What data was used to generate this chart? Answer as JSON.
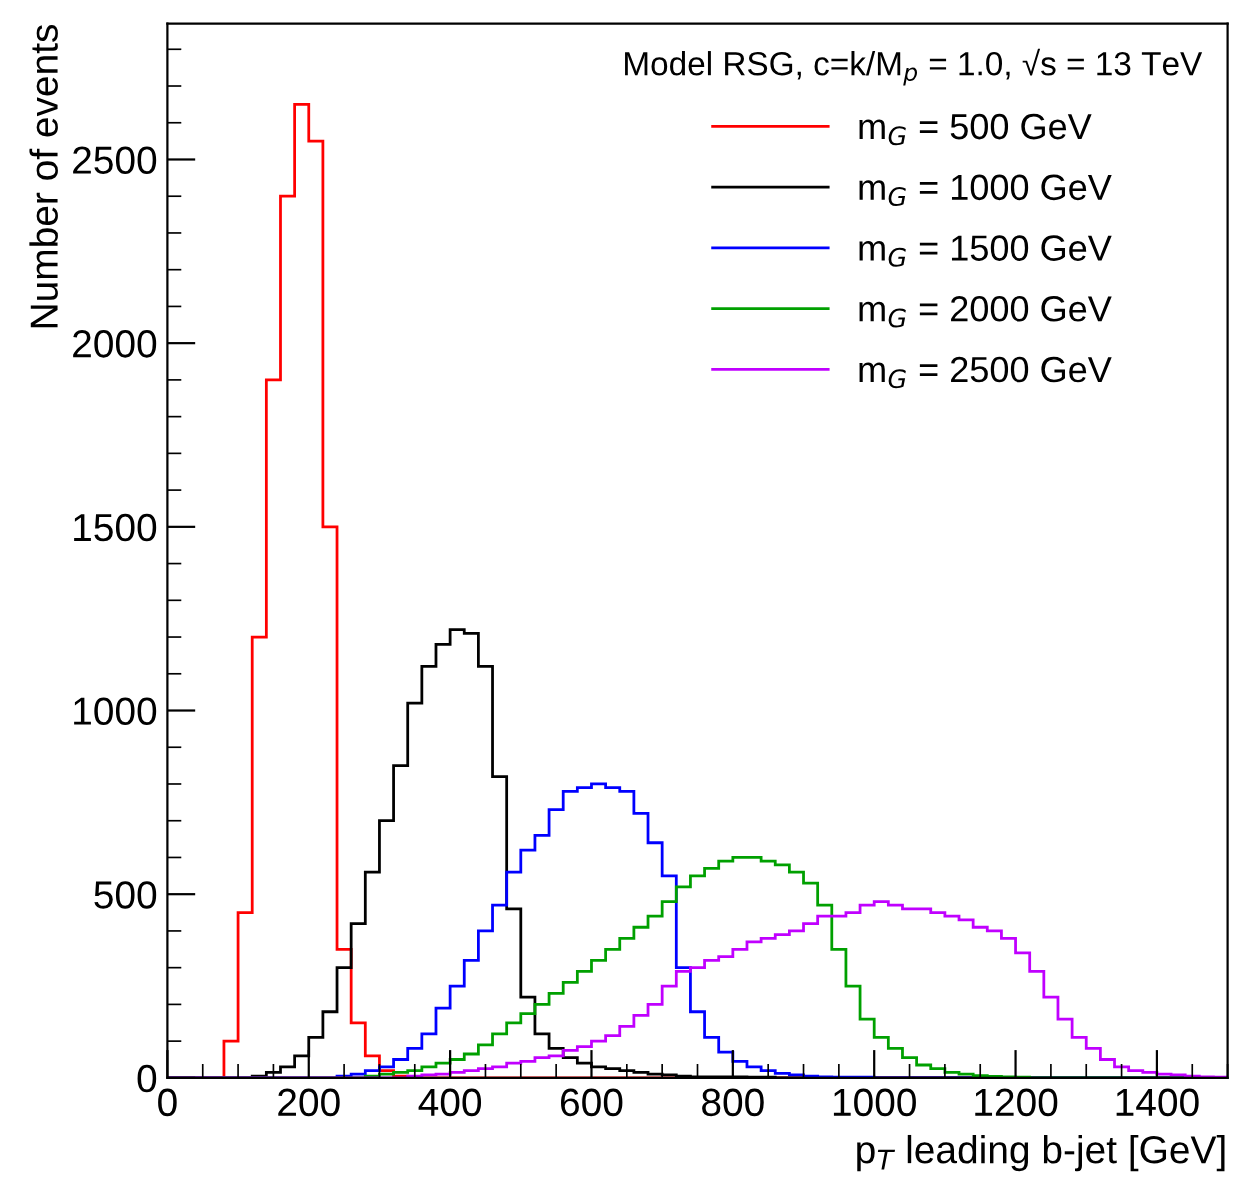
{
  "chart_data": {
    "type": "histogram",
    "xlabel": "p$_{T}$ leading b-jet [GeV]",
    "ylabel": "Number of events",
    "legend_title": "Model RSG, c=k/M$_{p}$ = 1.0, √s = 13 TeV",
    "bins": [
      0,
      20,
      40,
      60,
      80,
      100,
      120,
      140,
      160,
      180,
      200,
      220,
      240,
      260,
      280,
      300,
      320,
      340,
      360,
      380,
      400,
      420,
      440,
      460,
      480,
      500,
      520,
      540,
      560,
      580,
      600,
      620,
      640,
      660,
      680,
      700,
      720,
      740,
      760,
      780,
      800,
      820,
      840,
      860,
      880,
      900,
      920,
      940,
      960,
      980,
      1000,
      1020,
      1040,
      1060,
      1080,
      1100,
      1120,
      1140,
      1160,
      1180,
      1200,
      1220,
      1240,
      1260,
      1280,
      1300,
      1320,
      1340,
      1360,
      1380,
      1400,
      1420,
      1440,
      1460,
      1480,
      1500
    ],
    "series": [
      {
        "name": "m$_{G}$ = 500 GeV",
        "color": "#ff0000",
        "values": [
          0,
          0,
          0,
          0,
          100,
          450,
          1200,
          1900,
          2400,
          2650,
          2550,
          1500,
          350,
          150,
          60,
          20,
          5,
          0,
          0,
          0,
          0,
          0,
          0,
          0,
          0,
          0,
          0,
          0,
          0,
          0,
          0,
          0,
          0,
          0,
          0,
          0,
          0,
          0,
          0,
          0,
          0,
          0,
          0,
          0,
          0,
          0,
          0,
          0,
          0,
          0,
          0,
          0,
          0,
          0,
          0,
          0,
          0,
          0,
          0,
          0,
          0,
          0,
          0,
          0,
          0,
          0,
          0,
          0,
          0,
          0,
          0,
          0,
          0,
          0,
          0
        ]
      },
      {
        "name": "m$_{G}$ = 1000 GeV",
        "color": "#000000",
        "values": [
          0,
          0,
          0,
          0,
          0,
          0,
          5,
          15,
          30,
          60,
          110,
          180,
          300,
          420,
          560,
          700,
          850,
          1020,
          1120,
          1180,
          1220,
          1210,
          1120,
          820,
          460,
          220,
          120,
          80,
          55,
          40,
          30,
          25,
          20,
          15,
          10,
          8,
          5,
          3,
          3,
          3,
          3,
          2,
          2,
          0,
          0,
          0,
          0,
          0,
          0,
          0,
          0,
          0,
          0,
          0,
          0,
          0,
          0,
          0,
          0,
          0,
          0,
          0,
          0,
          0,
          0,
          0,
          0,
          0,
          0,
          0,
          0,
          0,
          0,
          0,
          0
        ]
      },
      {
        "name": "m$_{G}$ = 1500 GeV",
        "color": "#0000ff",
        "values": [
          0,
          0,
          0,
          0,
          0,
          0,
          0,
          0,
          0,
          0,
          0,
          0,
          5,
          10,
          20,
          30,
          50,
          80,
          120,
          190,
          250,
          320,
          400,
          470,
          560,
          620,
          660,
          730,
          780,
          790,
          800,
          790,
          780,
          720,
          640,
          550,
          300,
          180,
          110,
          70,
          45,
          30,
          20,
          12,
          8,
          5,
          3,
          2,
          2,
          2,
          0,
          0,
          0,
          0,
          0,
          0,
          0,
          0,
          0,
          0,
          0,
          0,
          0,
          0,
          0,
          0,
          0,
          0,
          0,
          0,
          0,
          0,
          0,
          0,
          0
        ]
      },
      {
        "name": "m$_{G}$ = 2000 GeV",
        "color": "#00a000",
        "values": [
          0,
          0,
          0,
          0,
          0,
          0,
          0,
          0,
          0,
          0,
          0,
          0,
          0,
          0,
          5,
          10,
          15,
          20,
          30,
          40,
          50,
          65,
          90,
          120,
          150,
          175,
          200,
          230,
          260,
          290,
          320,
          350,
          380,
          410,
          440,
          480,
          520,
          550,
          570,
          590,
          600,
          600,
          590,
          580,
          560,
          530,
          470,
          350,
          250,
          160,
          110,
          80,
          55,
          35,
          25,
          15,
          10,
          6,
          4,
          3,
          2,
          0,
          0,
          0,
          0,
          0,
          0,
          0,
          0,
          0,
          0,
          0,
          0,
          0,
          0
        ]
      },
      {
        "name": "m$_{G}$ = 2500 GeV",
        "color": "#c000ff",
        "values": [
          0,
          0,
          0,
          0,
          0,
          0,
          0,
          0,
          0,
          0,
          0,
          0,
          0,
          0,
          0,
          0,
          0,
          5,
          8,
          10,
          15,
          20,
          25,
          30,
          40,
          45,
          55,
          60,
          75,
          85,
          100,
          115,
          140,
          170,
          200,
          250,
          290,
          300,
          320,
          330,
          350,
          370,
          380,
          390,
          400,
          420,
          440,
          440,
          450,
          470,
          480,
          470,
          460,
          460,
          450,
          440,
          430,
          410,
          400,
          380,
          340,
          290,
          220,
          160,
          110,
          80,
          50,
          30,
          20,
          15,
          10,
          8,
          5,
          3,
          2
        ]
      }
    ],
    "xlim": [
      0,
      1500
    ],
    "ylim": [
      0,
      2870
    ],
    "xticks": [
      0,
      200,
      400,
      600,
      800,
      1000,
      1200,
      1400
    ],
    "yticks": [
      0,
      500,
      1000,
      1500,
      2000,
      2500
    ],
    "legend": "top right",
    "grid": false
  }
}
